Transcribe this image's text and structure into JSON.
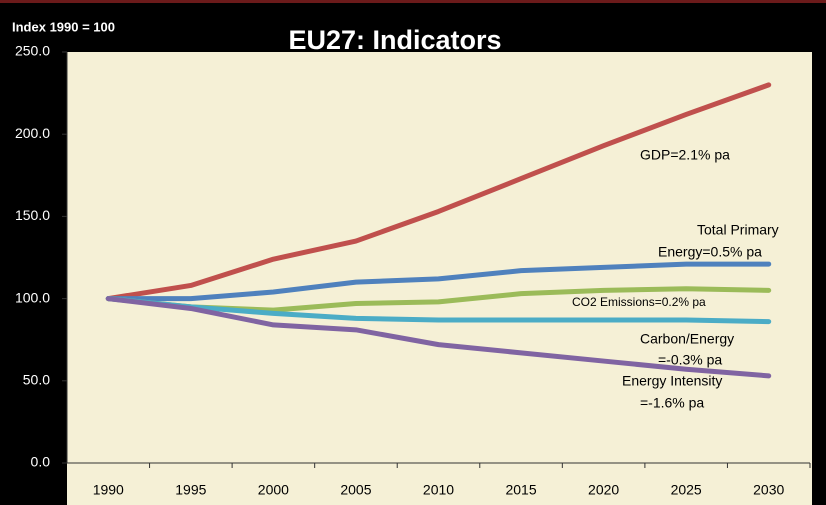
{
  "chart_data": {
    "type": "line",
    "title": "EU27: Indicators",
    "axis_label": "Index 1990 = 100",
    "categories": [
      "1990",
      "1995",
      "2000",
      "2005",
      "2010",
      "2015",
      "2020",
      "2025",
      "2030"
    ],
    "series": [
      {
        "color": "#c0504d",
        "values": [
          100,
          108,
          124,
          135,
          153,
          173,
          193,
          212,
          230
        ]
      },
      {
        "color": "#4f81bd",
        "values": [
          100,
          100,
          104,
          110,
          112,
          117,
          119,
          121,
          121
        ]
      },
      {
        "color": "#9bbb59",
        "values": [
          100,
          95,
          93,
          97,
          98,
          103,
          105,
          106,
          105
        ]
      },
      {
        "color": "#4bacc6",
        "values": [
          100,
          95,
          91,
          88,
          87,
          87,
          87,
          87,
          86
        ]
      },
      {
        "color": "#8064a2",
        "values": [
          100,
          94,
          84,
          81,
          72,
          67,
          62,
          57,
          53
        ]
      }
    ],
    "annotations": [
      "GDP=2.1% pa",
      "Total Primary",
      "Energy=0.5% pa",
      "CO2 Emissions=0.2% pa",
      "Carbon/Energy",
      "=-0.3% pa",
      "Energy Intensity",
      "=-1.6% pa"
    ],
    "ylim": [
      0,
      250
    ],
    "yticks": [
      {
        "value": 0,
        "label": "0.0"
      },
      {
        "value": 50,
        "label": "50.0"
      },
      {
        "value": 100,
        "label": "100.0"
      },
      {
        "value": 150,
        "label": "150.0"
      },
      {
        "value": 200,
        "label": "200.0"
      },
      {
        "value": 250,
        "label": "250.0"
      }
    ],
    "grid": false
  }
}
